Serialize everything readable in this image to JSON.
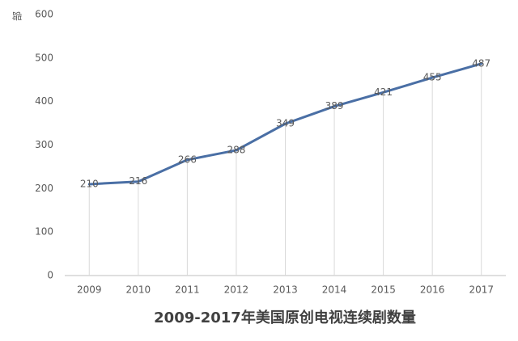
{
  "chart_data": {
    "type": "line",
    "title": "2009-2017年美国原创电视连续剧数量",
    "y_label": "部",
    "categories": [
      "2009",
      "2010",
      "2011",
      "2012",
      "2013",
      "2014",
      "2015",
      "2016",
      "2017"
    ],
    "values": [
      210,
      216,
      266,
      288,
      349,
      389,
      421,
      455,
      487
    ],
    "color": "#4a6fa5",
    "ylim": [
      0,
      600
    ],
    "yticks": [
      0,
      100,
      200,
      300,
      400,
      500,
      600
    ],
    "grid": false,
    "drop_lines": true
  }
}
